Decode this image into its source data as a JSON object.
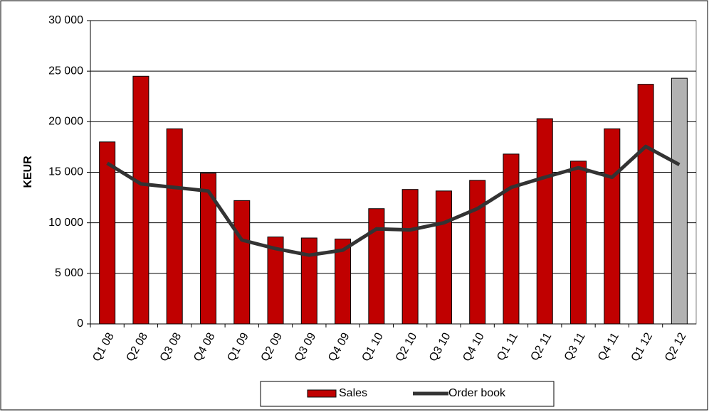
{
  "chart_data": {
    "type": "bar_line",
    "y_label": "KEUR",
    "categories": [
      "Q1 08",
      "Q2 08",
      "Q3 08",
      "Q4 08",
      "Q1 09",
      "Q2 09",
      "Q3 09",
      "Q4 09",
      "Q1 10",
      "Q2 10",
      "Q3 10",
      "Q4 10",
      "Q1 11",
      "Q2 11",
      "Q3 11",
      "Q4 11",
      "Q1 12",
      "Q2 12"
    ],
    "series": [
      {
        "name": "Sales",
        "type": "bar",
        "color": "#c00000",
        "colors": [
          "#c00000",
          "#c00000",
          "#c00000",
          "#c00000",
          "#c00000",
          "#c00000",
          "#c00000",
          "#c00000",
          "#c00000",
          "#c00000",
          "#c00000",
          "#c00000",
          "#c00000",
          "#c00000",
          "#c00000",
          "#c00000",
          "#c00000",
          "#b2b2b2"
        ],
        "values": [
          18000,
          24500,
          19300,
          14900,
          12200,
          8600,
          8500,
          8400,
          11400,
          13300,
          13150,
          14200,
          16800,
          20300,
          16100,
          19300,
          23700,
          24300
        ]
      },
      {
        "name": "Order book",
        "type": "line",
        "color": "#333333",
        "values": [
          15900,
          13850,
          13500,
          13150,
          8300,
          7450,
          6800,
          7300,
          9400,
          9300,
          10000,
          11400,
          13500,
          14500,
          15450,
          14500,
          17550,
          15750
        ]
      }
    ],
    "ylim": [
      0,
      30000
    ],
    "yticks": [
      0,
      {
        "value": 5000,
        "label": "5 000"
      },
      {
        "value": 10000,
        "label": "10 000"
      },
      {
        "value": 15000,
        "label": "15 000"
      },
      {
        "value": 20000,
        "label": "20 000"
      },
      {
        "value": 25000,
        "label": "25 000"
      },
      {
        "value": 30000,
        "label": "30 000"
      }
    ],
    "grid": true,
    "legend": "bottom"
  }
}
